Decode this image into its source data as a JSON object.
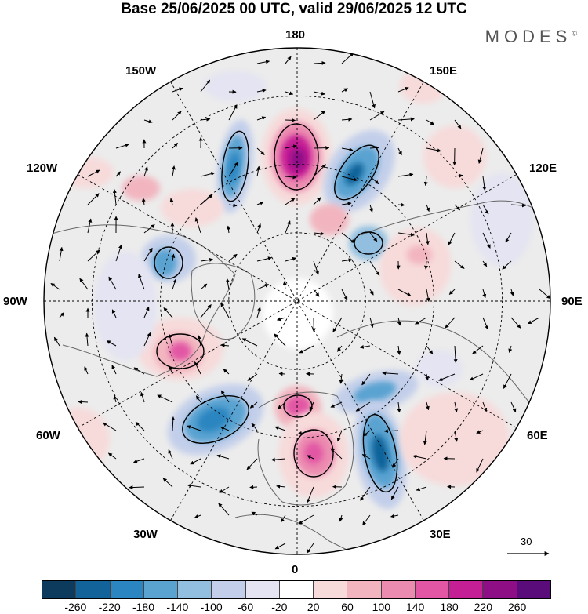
{
  "title": "Base 25/06/2025 00 UTC, valid 29/06/2025 12 UTC",
  "brand": "MODES",
  "brand_mark": "©",
  "longitude_labels": {
    "top": "180",
    "bottom": "0",
    "left": "90W",
    "right": "90E",
    "w150": "150W",
    "e150": "150E",
    "w120": "120W",
    "e120": "120E",
    "w60": "60W",
    "e60": "60E",
    "w30": "30W",
    "e30": "30E"
  },
  "reference_vector_label": "30",
  "colorbar": {
    "colors": [
      "#0c3b5e",
      "#11639a",
      "#2b85c0",
      "#5aa3d1",
      "#92bfe0",
      "#c3cfea",
      "#e4e4f2",
      "#ffffff",
      "#f7dada",
      "#f2b5bf",
      "#ec8bb0",
      "#e256a4",
      "#c51f95",
      "#8e0e86",
      "#5a0c7a"
    ],
    "ticks": [
      "-260",
      "-220",
      "-180",
      "-140",
      "-100",
      "-60",
      "-20",
      "20",
      "60",
      "100",
      "140",
      "180",
      "220",
      "260"
    ]
  }
}
